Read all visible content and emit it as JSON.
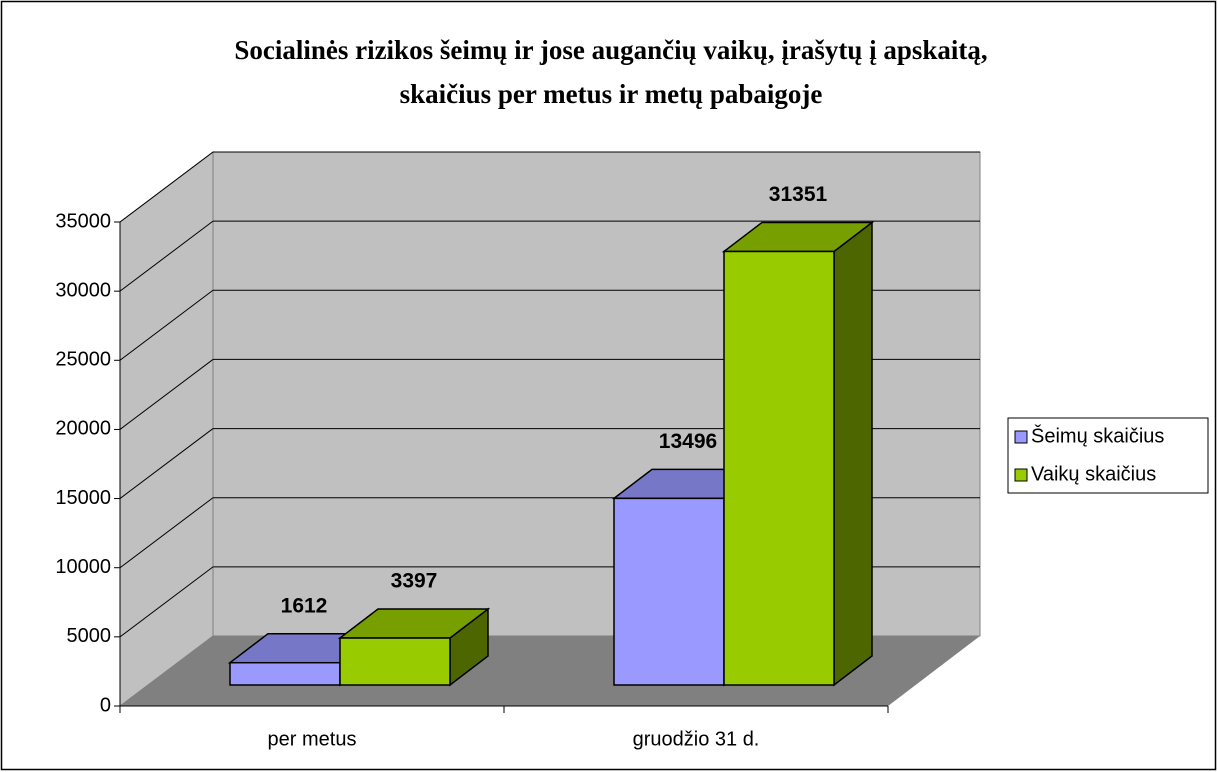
{
  "chart_data": {
    "type": "bar3d",
    "title": [
      "Socialinės rizikos šeimų ir jose augančių vaikų, įrašytų į apskaitą,",
      "skaičius per metus ir metų pabaigoje"
    ],
    "categories": [
      "per metus",
      "gruodžio 31 d."
    ],
    "series": [
      {
        "name": "Šeimų skaičius",
        "color": "#9999ff",
        "values": [
          1612,
          13496
        ]
      },
      {
        "name": "Vaikų skaičius",
        "color": "#99cc00",
        "values": [
          3397,
          31351
        ]
      }
    ],
    "ylim": [
      0,
      35000
    ],
    "yticks": [
      0,
      5000,
      10000,
      15000,
      20000,
      25000,
      30000,
      35000
    ],
    "grid": true,
    "legend": "right"
  }
}
